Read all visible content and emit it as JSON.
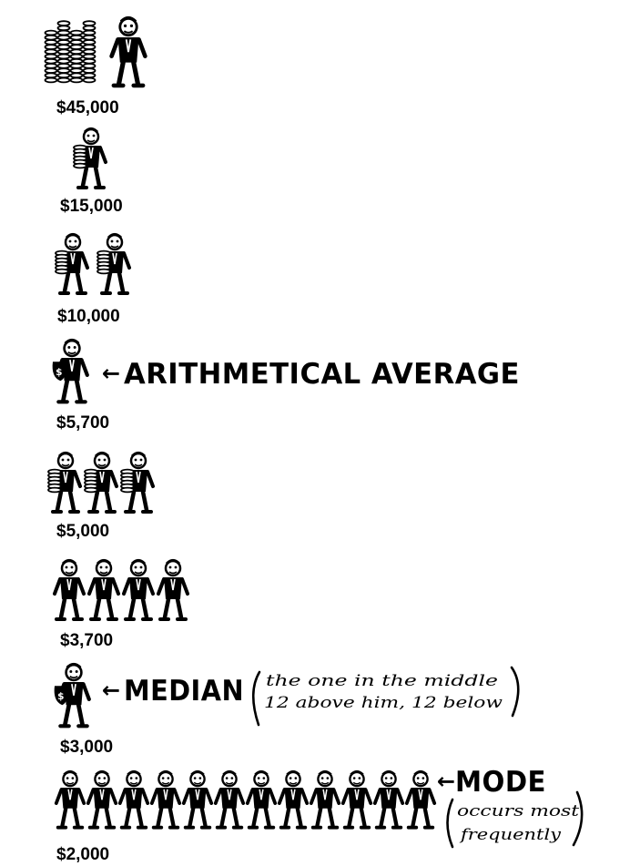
{
  "colors": {
    "ink": "#000000",
    "paper": "#ffffff"
  },
  "chart_data": {
    "type": "pictograph",
    "unit": "figure = one person",
    "rows": [
      {
        "salary": "$45,000",
        "count": 1,
        "figure": "boss-with-coin-stacks"
      },
      {
        "salary": "$15,000",
        "count": 1,
        "figure": "man-carrying-coins"
      },
      {
        "salary": "$10,000",
        "count": 2,
        "figure": "man-carrying-coins"
      },
      {
        "salary": "$5,700",
        "count": 1,
        "figure": "man-with-bag"
      },
      {
        "salary": "$5,000",
        "count": 3,
        "figure": "man-holding-coins"
      },
      {
        "salary": "$3,700",
        "count": 4,
        "figure": "worker"
      },
      {
        "salary": "$3,000",
        "count": 1,
        "figure": "man-standing"
      },
      {
        "salary": "$2,000",
        "count": 12,
        "figure": "worker"
      }
    ],
    "annotations": {
      "average": {
        "arrow": "←",
        "text": "ARITHMETICAL AVERAGE"
      },
      "median": {
        "arrow": "←",
        "text": "MEDIAN",
        "note_line1": "the one in the middle",
        "note_line2": "12 above him, 12 below"
      },
      "mode": {
        "arrow": "←",
        "text": "MODE",
        "note_line1": "occurs most",
        "note_line2": "frequently"
      }
    }
  }
}
